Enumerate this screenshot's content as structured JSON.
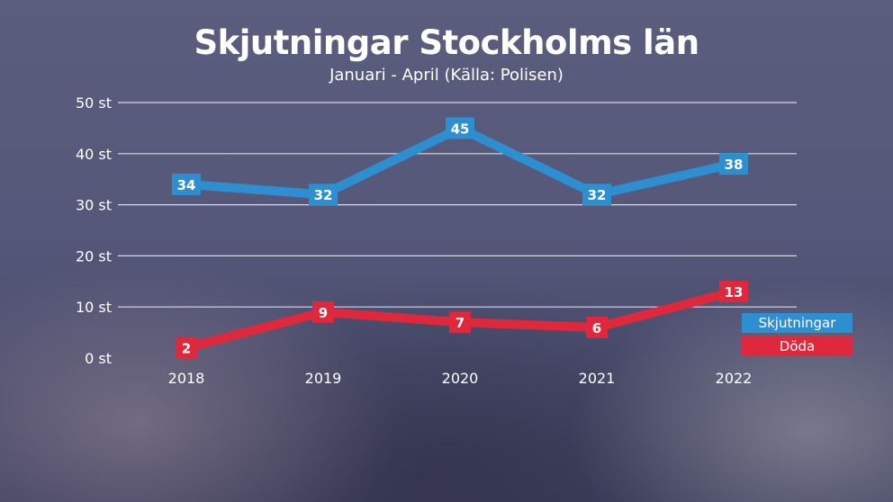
{
  "chart_data": {
    "type": "line",
    "title": "Skjutningar Stockholms län",
    "subtitle": "Januari - April (Källa: Polisen)",
    "categories": [
      "2018",
      "2019",
      "2020",
      "2021",
      "2022"
    ],
    "y_ticks": [
      "0 st",
      "10 st",
      "20 st",
      "30 st",
      "40 st",
      "50 st"
    ],
    "ylim": [
      0,
      50
    ],
    "grid": true,
    "legend_position": "bottom-right",
    "series": [
      {
        "name": "Skjutningar",
        "color": "#2d8fd0",
        "values": [
          34,
          32,
          45,
          32,
          38
        ]
      },
      {
        "name": "Döda",
        "color": "#e0283c",
        "values": [
          2,
          9,
          7,
          6,
          13
        ]
      }
    ]
  }
}
